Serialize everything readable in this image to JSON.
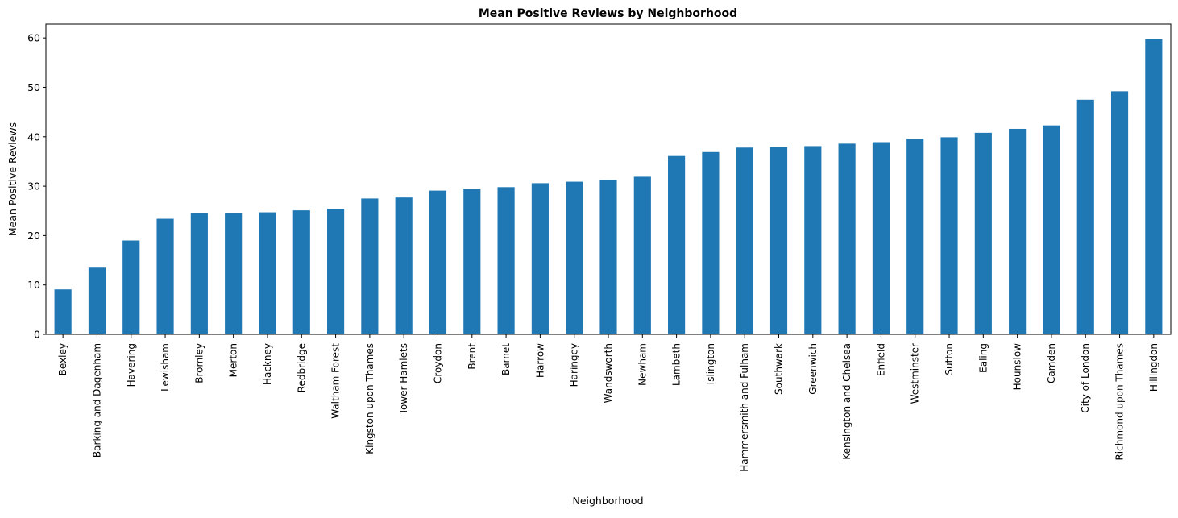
{
  "chart_data": {
    "type": "bar",
    "title": "Mean Positive Reviews by Neighborhood",
    "xlabel": "Neighborhood",
    "ylabel": "Mean Positive Reviews",
    "ylim": [
      0,
      62.8
    ],
    "yticks": [
      0,
      10,
      20,
      30,
      40,
      50,
      60
    ],
    "grid": false,
    "legend": "none",
    "bar_color": "#1f77b4",
    "categories": [
      "Bexley",
      "Barking and Dagenham",
      "Havering",
      "Lewisham",
      "Bromley",
      "Merton",
      "Hackney",
      "Redbridge",
      "Waltham Forest",
      "Kingston upon Thames",
      "Tower Hamlets",
      "Croydon",
      "Brent",
      "Barnet",
      "Harrow",
      "Haringey",
      "Wandsworth",
      "Newham",
      "Lambeth",
      "Islington",
      "Hammersmith and Fulham",
      "Southwark",
      "Greenwich",
      "Kensington and Chelsea",
      "Enfield",
      "Westminster",
      "Sutton",
      "Ealing",
      "Hounslow",
      "Camden",
      "City of London",
      "Richmond upon Thames",
      "Hillingdon"
    ],
    "values": [
      9.1,
      13.5,
      19.0,
      23.4,
      24.6,
      24.6,
      24.7,
      25.1,
      25.4,
      27.5,
      27.7,
      29.1,
      29.5,
      29.8,
      30.6,
      30.9,
      31.2,
      31.9,
      36.1,
      36.9,
      37.8,
      37.9,
      38.1,
      38.6,
      38.9,
      39.6,
      39.9,
      40.8,
      41.6,
      42.3,
      47.5,
      49.2,
      59.8
    ]
  }
}
